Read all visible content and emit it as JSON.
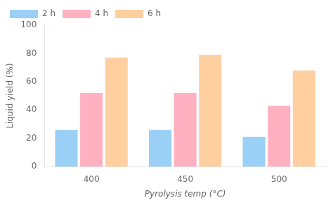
{
  "chart_data": {
    "type": "bar",
    "categories": [
      "400",
      "450",
      "500"
    ],
    "series": [
      {
        "name": "2 h",
        "values": [
          26,
          26,
          21
        ]
      },
      {
        "name": "4 h",
        "values": [
          52,
          52,
          43
        ]
      },
      {
        "name": "6 h",
        "values": [
          77,
          79,
          68
        ]
      }
    ],
    "xlabel": "Pyrolysis temp (°C)",
    "ylabel": "Liquid yield (%)",
    "ylim": [
      0,
      100
    ],
    "yticks": [
      0,
      20,
      40,
      60,
      80,
      100
    ],
    "grid": false,
    "legend": "upper left"
  }
}
